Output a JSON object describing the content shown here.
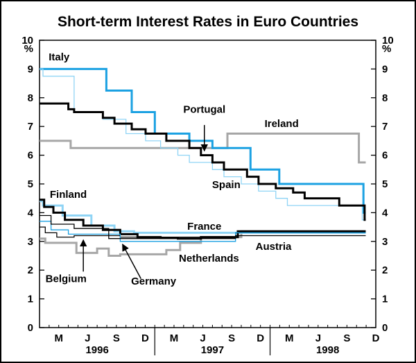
{
  "chart_data": {
    "type": "line",
    "title": "Short-term Interest Rates in Euro Countries",
    "ylabel_left": "%",
    "ylabel_right": "%",
    "ylim": [
      0,
      10
    ],
    "yticks": [
      "0",
      "1",
      "2",
      "3",
      "4",
      "5",
      "6",
      "7",
      "8",
      "9",
      "10"
    ],
    "xlim": [
      1996.0,
      1998.917
    ],
    "xtick_labels": [
      "M",
      "J",
      "S",
      "D",
      "M",
      "J",
      "S",
      "D",
      "M",
      "J",
      "S",
      "D"
    ],
    "xtick_positions": [
      1996.167,
      1996.417,
      1996.667,
      1996.917,
      1997.167,
      1997.417,
      1997.667,
      1997.917,
      1998.167,
      1998.417,
      1998.667,
      1998.917
    ],
    "year_labels": [
      {
        "text": "1996",
        "x": 1996.5
      },
      {
        "text": "1997",
        "x": 1997.5
      },
      {
        "text": "1998",
        "x": 1998.5
      }
    ],
    "series": [
      {
        "name": "Ireland",
        "color": "#a6a6a6",
        "width": 3,
        "x": [
          1996.0,
          1996.27,
          1996.27,
          1997.63,
          1997.63,
          1998.77,
          1998.77,
          1998.83
        ],
        "y": [
          6.5,
          6.5,
          6.25,
          6.25,
          6.75,
          6.75,
          5.75,
          5.75
        ]
      },
      {
        "name": "Netherlands",
        "color": "#a6a6a6",
        "width": 3,
        "x": [
          1996.0,
          1996.05,
          1996.05,
          1996.32,
          1996.32,
          1996.5,
          1996.5,
          1996.6,
          1996.6,
          1996.7,
          1996.7,
          1997.1,
          1997.1,
          1997.22,
          1997.22,
          1997.4,
          1997.4,
          1997.75,
          1997.75,
          1998.83
        ],
        "y": [
          3.1,
          3.1,
          2.95,
          2.95,
          2.6,
          2.6,
          2.75,
          2.75,
          2.5,
          2.5,
          2.55,
          2.55,
          2.7,
          2.7,
          2.95,
          2.95,
          3.15,
          3.15,
          3.35,
          3.35
        ]
      },
      {
        "name": "Italy",
        "color": "#1ba1e2",
        "width": 3,
        "x": [
          1996.0,
          1996.58,
          1996.58,
          1996.8,
          1996.8,
          1997.0,
          1997.0,
          1997.3,
          1997.3,
          1997.5,
          1997.5,
          1997.83,
          1997.83,
          1998.08,
          1998.08,
          1998.81,
          1998.81,
          1998.83
        ],
        "y": [
          9.0,
          9.0,
          8.25,
          8.25,
          7.5,
          7.5,
          6.75,
          6.75,
          6.5,
          6.5,
          6.25,
          6.25,
          5.5,
          5.5,
          5.0,
          5.0,
          4.0,
          4.0
        ]
      },
      {
        "name": "Spain",
        "color": "#8fd4f5",
        "width": 1.3,
        "x": [
          1996.0,
          1996.03,
          1996.03,
          1996.3,
          1996.3,
          1996.55,
          1996.55,
          1996.75,
          1996.75,
          1996.92,
          1996.92,
          1997.05,
          1997.05,
          1997.2,
          1997.2,
          1997.3,
          1997.3,
          1997.5,
          1997.5,
          1997.6,
          1997.6,
          1997.75,
          1997.75,
          1997.9,
          1997.9,
          1998.05,
          1998.05,
          1998.15,
          1998.15,
          1998.3,
          1998.3,
          1998.5,
          1998.5,
          1998.65,
          1998.65,
          1998.8,
          1998.8,
          1998.83
        ],
        "y": [
          9.0,
          9.0,
          8.75,
          8.75,
          7.5,
          7.5,
          7.25,
          7.25,
          6.75,
          6.75,
          6.5,
          6.5,
          6.25,
          6.25,
          6.0,
          6.0,
          5.75,
          5.75,
          5.5,
          5.5,
          5.25,
          5.25,
          5.0,
          5.0,
          4.75,
          4.75,
          4.5,
          4.5,
          4.25,
          4.25,
          4.25,
          4.25,
          4.25,
          4.25,
          4.25,
          4.25,
          3.75,
          3.75
        ]
      },
      {
        "name": "Portugal",
        "color": "#000000",
        "width": 3,
        "x": [
          1996.0,
          1996.25,
          1996.25,
          1996.3,
          1996.3,
          1996.55,
          1996.55,
          1996.65,
          1996.65,
          1996.8,
          1996.8,
          1996.92,
          1996.92,
          1997.1,
          1997.1,
          1997.3,
          1997.3,
          1997.4,
          1997.4,
          1997.5,
          1997.5,
          1997.6,
          1997.6,
          1997.8,
          1997.8,
          1997.9,
          1997.9,
          1998.05,
          1998.05,
          1998.2,
          1998.2,
          1998.3,
          1998.3,
          1998.6,
          1998.6,
          1998.82,
          1998.82,
          1998.83
        ],
        "y": [
          7.8,
          7.8,
          7.6,
          7.6,
          7.5,
          7.5,
          7.3,
          7.3,
          7.1,
          7.1,
          6.9,
          6.9,
          6.75,
          6.75,
          6.5,
          6.5,
          6.25,
          6.25,
          6.0,
          6.0,
          5.75,
          5.75,
          5.5,
          5.5,
          5.25,
          5.25,
          5.0,
          5.0,
          4.85,
          4.85,
          4.7,
          4.7,
          4.5,
          4.5,
          4.25,
          4.25,
          3.75,
          3.75
        ]
      },
      {
        "name": "Finland",
        "color": "#8fd4f5",
        "width": 3,
        "x": [
          1996.0,
          1996.03,
          1996.03,
          1996.2,
          1996.2,
          1996.45,
          1996.45,
          1996.65,
          1996.65,
          1996.82,
          1996.82,
          1998.83
        ],
        "y": [
          4.4,
          4.4,
          4.25,
          4.25,
          3.9,
          3.9,
          3.55,
          3.55,
          3.35,
          3.35,
          3.3,
          3.3
        ]
      },
      {
        "name": "France",
        "color": "#000000",
        "width": 3,
        "x": [
          1996.0,
          1996.04,
          1996.04,
          1996.12,
          1996.12,
          1996.22,
          1996.22,
          1996.38,
          1996.38,
          1996.55,
          1996.55,
          1996.7,
          1996.7,
          1996.85,
          1996.85,
          1997.05,
          1997.05,
          1997.2,
          1997.2,
          1997.4,
          1997.4,
          1997.72,
          1997.72,
          1998.83
        ],
        "y": [
          4.45,
          4.45,
          4.2,
          4.2,
          4.0,
          4.0,
          3.75,
          3.75,
          3.55,
          3.55,
          3.4,
          3.4,
          3.25,
          3.25,
          3.15,
          3.15,
          3.12,
          3.12,
          3.1,
          3.1,
          3.15,
          3.15,
          3.35,
          3.35
        ]
      },
      {
        "name": "Belgium",
        "color": "#000000",
        "width": 1.3,
        "x": [
          1996.0,
          1996.05,
          1996.05,
          1996.15,
          1996.15,
          1996.3,
          1996.3,
          1996.7,
          1996.7,
          1997.7,
          1997.7,
          1998.83
        ],
        "y": [
          3.5,
          3.5,
          3.3,
          3.3,
          3.15,
          3.15,
          3.2,
          3.2,
          3.15,
          3.15,
          3.3,
          3.3
        ]
      },
      {
        "name": "Germany",
        "color": "#1ba1e2",
        "width": 1.3,
        "x": [
          1996.0,
          1996.1,
          1996.1,
          1996.25,
          1996.25,
          1996.45,
          1996.45,
          1996.7,
          1996.7,
          1997.7,
          1997.7,
          1998.83
        ],
        "y": [
          3.7,
          3.7,
          3.4,
          3.4,
          3.25,
          3.25,
          3.25,
          3.25,
          3.0,
          3.0,
          3.3,
          3.3
        ]
      },
      {
        "name": "Austria",
        "color": "#000000",
        "width": 1.3,
        "x": [
          1996.0,
          1996.1,
          1996.1,
          1996.3,
          1996.3,
          1996.6,
          1996.6,
          1997.7,
          1997.7,
          1998.83
        ],
        "y": [
          3.9,
          3.9,
          3.6,
          3.6,
          3.45,
          3.45,
          3.1,
          3.1,
          3.2,
          3.2
        ]
      }
    ],
    "labels": [
      {
        "text": "Italy",
        "x": 1996.17,
        "y": 9.3
      },
      {
        "text": "Portugal",
        "x": 1997.43,
        "y": 7.48
      },
      {
        "text": "Ireland",
        "x": 1998.1,
        "y": 6.98
      },
      {
        "text": "Spain",
        "x": 1997.62,
        "y": 4.85
      },
      {
        "text": "Finland",
        "x": 1996.25,
        "y": 4.52
      },
      {
        "text": "France",
        "x": 1997.43,
        "y": 3.4
      },
      {
        "text": "Austria",
        "x": 1998.03,
        "y": 2.7
      },
      {
        "text": "Netherlands",
        "x": 1997.47,
        "y": 2.3
      },
      {
        "text": "Belgium",
        "x": 1996.23,
        "y": 1.58
      },
      {
        "text": "Germany",
        "x": 1996.99,
        "y": 1.5
      }
    ]
  }
}
